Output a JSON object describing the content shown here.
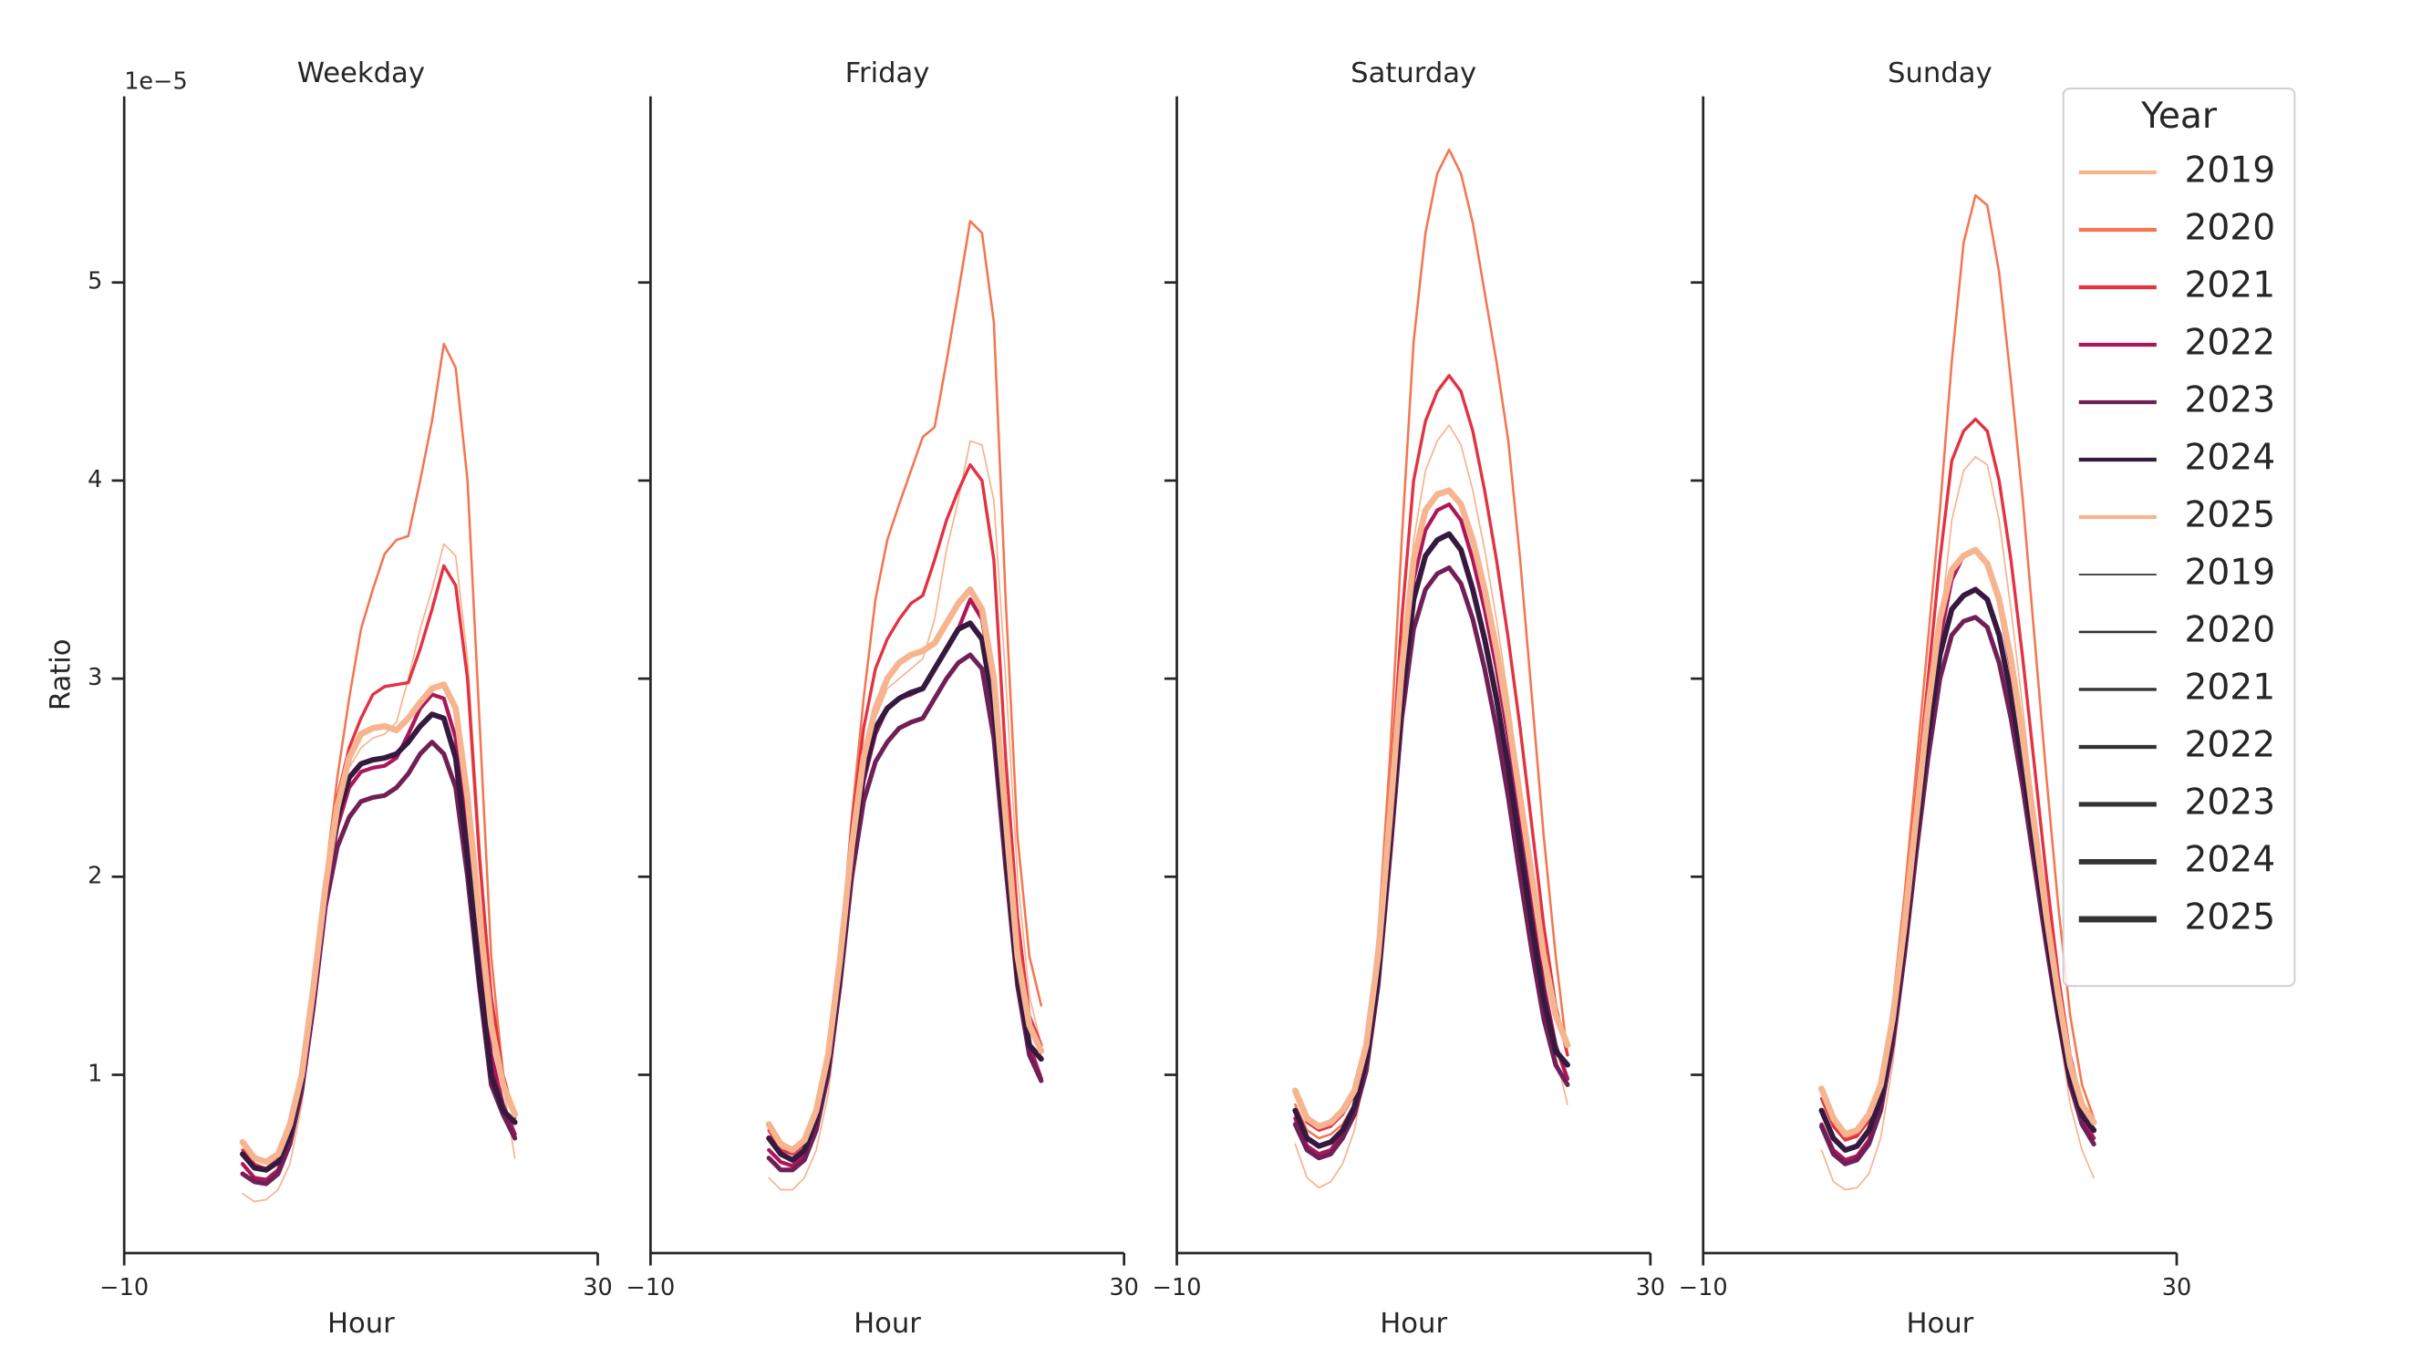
{
  "chart_data": [
    {
      "type": "line",
      "title": "Weekday",
      "xlabel": "Hour",
      "ylabel": "Ratio",
      "y_offset_label": "1e−5",
      "ytick_labels": true,
      "x": [
        0,
        1,
        2,
        3,
        4,
        5,
        6,
        7,
        8,
        9,
        10,
        11,
        12,
        13,
        14,
        15,
        16,
        17,
        18,
        19,
        20,
        21,
        22,
        23
      ],
      "xlim": [
        -10,
        30
      ],
      "xticks": [
        {
          "value": -10,
          "label": "−10"
        },
        30
      ],
      "ylim": [
        0.1,
        5.94
      ],
      "yticks": [
        1,
        2,
        3,
        4,
        5
      ],
      "series": [
        {
          "name": "2019",
          "color": "#f6b48f",
          "linewidth": 1,
          "values": [
            0.4,
            0.36,
            0.37,
            0.42,
            0.55,
            0.85,
            1.4,
            1.98,
            2.35,
            2.55,
            2.65,
            2.7,
            2.72,
            2.78,
            3.0,
            3.25,
            3.45,
            3.68,
            3.62,
            3.1,
            2.2,
            1.4,
            0.95,
            0.58
          ]
        },
        {
          "name": "2020",
          "color": "#f37651",
          "linewidth": 1.5,
          "values": [
            0.62,
            0.55,
            0.53,
            0.58,
            0.72,
            0.95,
            1.45,
            2.0,
            2.5,
            2.9,
            3.25,
            3.45,
            3.63,
            3.7,
            3.72,
            4.0,
            4.3,
            4.69,
            4.57,
            4.0,
            2.8,
            1.6,
            1.0,
            0.8
          ]
        },
        {
          "name": "2021",
          "color": "#e13342",
          "linewidth": 2,
          "values": [
            0.62,
            0.55,
            0.52,
            0.57,
            0.72,
            0.98,
            1.45,
            1.98,
            2.4,
            2.65,
            2.8,
            2.92,
            2.96,
            2.97,
            2.98,
            3.15,
            3.35,
            3.57,
            3.47,
            3.0,
            2.1,
            1.4,
            1.0,
            0.78
          ]
        },
        {
          "name": "2022",
          "color": "#ad1759",
          "linewidth": 2.5,
          "values": [
            0.55,
            0.48,
            0.47,
            0.52,
            0.68,
            0.95,
            1.4,
            1.9,
            2.25,
            2.45,
            2.53,
            2.55,
            2.56,
            2.6,
            2.72,
            2.85,
            2.92,
            2.9,
            2.7,
            2.2,
            1.6,
            1.1,
            0.85,
            0.7
          ]
        },
        {
          "name": "2023",
          "color": "#701f57",
          "linewidth": 3,
          "values": [
            0.5,
            0.46,
            0.45,
            0.5,
            0.65,
            0.92,
            1.35,
            1.85,
            2.15,
            2.3,
            2.38,
            2.4,
            2.41,
            2.45,
            2.52,
            2.62,
            2.68,
            2.62,
            2.45,
            2.0,
            1.45,
            0.95,
            0.8,
            0.68
          ]
        },
        {
          "name": "2024",
          "color": "#35193e",
          "linewidth": 3.5,
          "values": [
            0.6,
            0.53,
            0.52,
            0.56,
            0.7,
            0.98,
            1.45,
            1.95,
            2.3,
            2.5,
            2.57,
            2.59,
            2.6,
            2.62,
            2.68,
            2.76,
            2.82,
            2.8,
            2.6,
            2.1,
            1.5,
            1.0,
            0.82,
            0.76
          ]
        },
        {
          "name": "2025",
          "color": "#f6b48f",
          "linewidth": 4,
          "values": [
            0.66,
            0.58,
            0.56,
            0.6,
            0.75,
            1.0,
            1.45,
            1.95,
            2.35,
            2.6,
            2.72,
            2.75,
            2.76,
            2.74,
            2.8,
            2.88,
            2.95,
            2.97,
            2.85,
            2.4,
            1.8,
            1.25,
            0.95,
            0.8
          ]
        }
      ]
    },
    {
      "type": "line",
      "title": "Friday",
      "xlabel": "Hour",
      "ytick_labels": false,
      "x": [
        0,
        1,
        2,
        3,
        4,
        5,
        6,
        7,
        8,
        9,
        10,
        11,
        12,
        13,
        14,
        15,
        16,
        17,
        18,
        19,
        20,
        21,
        22,
        23
      ],
      "xlim": [
        -10,
        30
      ],
      "xticks": [
        {
          "value": -10,
          "label": "−10"
        },
        30
      ],
      "ylim": [
        0.1,
        5.94
      ],
      "yticks": [
        1,
        2,
        3,
        4,
        5
      ],
      "series": [
        {
          "name": "2019",
          "color": "#f6b48f",
          "linewidth": 1,
          "values": [
            0.48,
            0.42,
            0.42,
            0.48,
            0.62,
            0.9,
            1.4,
            2.0,
            2.5,
            2.8,
            2.95,
            3.0,
            3.05,
            3.1,
            3.3,
            3.65,
            3.9,
            4.2,
            4.18,
            3.9,
            3.0,
            2.0,
            1.4,
            1.15
          ]
        },
        {
          "name": "2020",
          "color": "#f37651",
          "linewidth": 1.5,
          "values": [
            0.72,
            0.62,
            0.6,
            0.65,
            0.8,
            1.1,
            1.6,
            2.3,
            2.9,
            3.4,
            3.7,
            3.88,
            4.05,
            4.22,
            4.27,
            4.6,
            4.95,
            5.31,
            5.25,
            4.8,
            3.4,
            2.2,
            1.6,
            1.35
          ]
        },
        {
          "name": "2021",
          "color": "#e13342",
          "linewidth": 2,
          "values": [
            0.72,
            0.62,
            0.6,
            0.65,
            0.8,
            1.1,
            1.6,
            2.25,
            2.75,
            3.05,
            3.2,
            3.3,
            3.38,
            3.42,
            3.6,
            3.8,
            3.95,
            4.08,
            4.0,
            3.6,
            2.6,
            1.8,
            1.3,
            1.15
          ]
        },
        {
          "name": "2022",
          "color": "#ad1759",
          "linewidth": 2.5,
          "values": [
            0.62,
            0.56,
            0.54,
            0.6,
            0.75,
            1.02,
            1.48,
            2.05,
            2.48,
            2.72,
            2.85,
            2.9,
            2.92,
            2.95,
            3.05,
            3.15,
            3.25,
            3.4,
            3.3,
            2.95,
            2.25,
            1.55,
            1.15,
            0.98
          ]
        },
        {
          "name": "2023",
          "color": "#701f57",
          "linewidth": 3,
          "values": [
            0.58,
            0.52,
            0.52,
            0.57,
            0.72,
            1.0,
            1.45,
            2.0,
            2.38,
            2.58,
            2.68,
            2.75,
            2.78,
            2.8,
            2.9,
            3.0,
            3.08,
            3.12,
            3.05,
            2.7,
            2.05,
            1.45,
            1.1,
            0.97
          ]
        },
        {
          "name": "2024",
          "color": "#35193e",
          "linewidth": 3.5,
          "values": [
            0.68,
            0.6,
            0.57,
            0.62,
            0.78,
            1.06,
            1.52,
            2.1,
            2.52,
            2.75,
            2.85,
            2.9,
            2.93,
            2.95,
            3.05,
            3.15,
            3.25,
            3.28,
            3.2,
            2.85,
            2.15,
            1.5,
            1.15,
            1.08
          ]
        },
        {
          "name": "2025",
          "color": "#f6b48f",
          "linewidth": 4,
          "values": [
            0.75,
            0.65,
            0.62,
            0.67,
            0.82,
            1.1,
            1.58,
            2.15,
            2.6,
            2.85,
            3.0,
            3.08,
            3.12,
            3.14,
            3.18,
            3.28,
            3.38,
            3.45,
            3.35,
            3.0,
            2.3,
            1.6,
            1.25,
            1.12
          ]
        }
      ]
    },
    {
      "type": "line",
      "title": "Saturday",
      "xlabel": "Hour",
      "ytick_labels": false,
      "x": [
        0,
        1,
        2,
        3,
        4,
        5,
        6,
        7,
        8,
        9,
        10,
        11,
        12,
        13,
        14,
        15,
        16,
        17,
        18,
        19,
        20,
        21,
        22,
        23
      ],
      "xlim": [
        -10,
        30
      ],
      "xticks": [
        {
          "value": -10,
          "label": "−10"
        },
        30
      ],
      "ylim": [
        0.1,
        5.94
      ],
      "yticks": [
        1,
        2,
        3,
        4,
        5
      ],
      "series": [
        {
          "name": "2019",
          "color": "#f6b48f",
          "linewidth": 1,
          "values": [
            0.65,
            0.48,
            0.43,
            0.46,
            0.55,
            0.72,
            1.05,
            1.55,
            2.25,
            3.05,
            3.7,
            4.05,
            4.2,
            4.28,
            4.18,
            3.95,
            3.65,
            3.3,
            2.9,
            2.45,
            1.95,
            1.5,
            1.1,
            0.85
          ]
        },
        {
          "name": "2020",
          "color": "#f37651",
          "linewidth": 1.5,
          "values": [
            0.85,
            0.72,
            0.68,
            0.7,
            0.75,
            0.85,
            1.15,
            1.7,
            2.6,
            3.7,
            4.7,
            5.25,
            5.55,
            5.67,
            5.55,
            5.3,
            4.95,
            4.6,
            4.2,
            3.6,
            2.9,
            2.2,
            1.6,
            1.1
          ]
        },
        {
          "name": "2021",
          "color": "#e13342",
          "linewidth": 2,
          "values": [
            0.9,
            0.76,
            0.72,
            0.74,
            0.8,
            0.9,
            1.15,
            1.65,
            2.4,
            3.3,
            4.0,
            4.3,
            4.45,
            4.53,
            4.45,
            4.25,
            3.95,
            3.6,
            3.2,
            2.75,
            2.25,
            1.75,
            1.35,
            1.1
          ]
        },
        {
          "name": "2022",
          "color": "#ad1759",
          "linewidth": 2.5,
          "values": [
            0.78,
            0.64,
            0.6,
            0.62,
            0.7,
            0.82,
            1.05,
            1.5,
            2.2,
            2.95,
            3.5,
            3.75,
            3.85,
            3.88,
            3.8,
            3.6,
            3.35,
            3.05,
            2.7,
            2.3,
            1.85,
            1.45,
            1.15,
            0.98
          ]
        },
        {
          "name": "2023",
          "color": "#701f57",
          "linewidth": 3,
          "values": [
            0.75,
            0.62,
            0.58,
            0.6,
            0.68,
            0.8,
            1.02,
            1.45,
            2.1,
            2.8,
            3.25,
            3.45,
            3.53,
            3.56,
            3.48,
            3.3,
            3.05,
            2.75,
            2.4,
            2.0,
            1.62,
            1.28,
            1.05,
            0.95
          ]
        },
        {
          "name": "2024",
          "color": "#35193e",
          "linewidth": 3.5,
          "values": [
            0.82,
            0.68,
            0.64,
            0.66,
            0.72,
            0.84,
            1.08,
            1.5,
            2.2,
            2.9,
            3.4,
            3.62,
            3.7,
            3.73,
            3.65,
            3.45,
            3.2,
            2.9,
            2.55,
            2.15,
            1.75,
            1.38,
            1.12,
            1.05
          ]
        },
        {
          "name": "2025",
          "color": "#f6b48f",
          "linewidth": 4,
          "values": [
            0.92,
            0.78,
            0.74,
            0.76,
            0.82,
            0.92,
            1.15,
            1.6,
            2.3,
            3.05,
            3.6,
            3.85,
            3.93,
            3.95,
            3.88,
            3.7,
            3.45,
            3.15,
            2.8,
            2.4,
            2.0,
            1.6,
            1.3,
            1.15
          ]
        }
      ]
    },
    {
      "type": "line",
      "title": "Sunday",
      "xlabel": "Hour",
      "ytick_labels": false,
      "x": [
        0,
        1,
        2,
        3,
        4,
        5,
        6,
        7,
        8,
        9,
        10,
        11,
        12,
        13,
        14,
        15,
        16,
        17,
        18,
        19,
        20,
        21,
        22,
        23
      ],
      "xlim": [
        -10,
        30
      ],
      "xticks": [
        {
          "value": -10,
          "label": "−10"
        },
        30
      ],
      "ylim": [
        0.1,
        5.94
      ],
      "yticks": [
        1,
        2,
        3,
        4,
        5
      ],
      "legend": {
        "title": "Year",
        "loc": "upper right"
      },
      "size_legend": [
        "2019",
        "2020",
        "2021",
        "2022",
        "2023",
        "2024",
        "2025"
      ],
      "series": [
        {
          "name": "2019",
          "color": "#f6b48f",
          "linewidth": 1,
          "values": [
            0.62,
            0.46,
            0.42,
            0.43,
            0.5,
            0.68,
            1.05,
            1.55,
            2.1,
            2.65,
            3.25,
            3.8,
            4.05,
            4.12,
            4.08,
            3.8,
            3.35,
            2.85,
            2.3,
            1.75,
            1.25,
            0.85,
            0.62,
            0.48
          ]
        },
        {
          "name": "2020",
          "color": "#f37651",
          "linewidth": 1.5,
          "values": [
            0.92,
            0.75,
            0.68,
            0.7,
            0.78,
            0.95,
            1.35,
            1.9,
            2.55,
            3.2,
            3.85,
            4.6,
            5.2,
            5.44,
            5.39,
            5.05,
            4.5,
            3.9,
            3.2,
            2.5,
            1.85,
            1.3,
            0.95,
            0.78
          ]
        },
        {
          "name": "2021",
          "color": "#e13342",
          "linewidth": 2,
          "values": [
            0.88,
            0.74,
            0.67,
            0.69,
            0.77,
            0.94,
            1.3,
            1.8,
            2.4,
            3.0,
            3.6,
            4.1,
            4.25,
            4.31,
            4.25,
            4.0,
            3.6,
            3.1,
            2.55,
            2.0,
            1.5,
            1.1,
            0.85,
            0.72
          ]
        },
        {
          "name": "2022",
          "color": "#ad1759",
          "linewidth": 2.5,
          "values": [
            0.75,
            0.62,
            0.57,
            0.59,
            0.67,
            0.85,
            1.18,
            1.65,
            2.2,
            2.75,
            3.2,
            3.5,
            3.62,
            3.65,
            3.58,
            3.38,
            3.05,
            2.65,
            2.2,
            1.75,
            1.35,
            1.0,
            0.78,
            0.68
          ]
        },
        {
          "name": "2023",
          "color": "#701f57",
          "linewidth": 3,
          "values": [
            0.74,
            0.6,
            0.55,
            0.57,
            0.65,
            0.82,
            1.15,
            1.6,
            2.12,
            2.6,
            3.0,
            3.22,
            3.29,
            3.31,
            3.26,
            3.08,
            2.8,
            2.45,
            2.05,
            1.65,
            1.28,
            0.95,
            0.75,
            0.65
          ]
        },
        {
          "name": "2024",
          "color": "#35193e",
          "linewidth": 3.5,
          "values": [
            0.82,
            0.68,
            0.62,
            0.64,
            0.72,
            0.88,
            1.22,
            1.68,
            2.22,
            2.72,
            3.12,
            3.35,
            3.42,
            3.45,
            3.4,
            3.22,
            2.92,
            2.55,
            2.15,
            1.72,
            1.32,
            0.98,
            0.8,
            0.72
          ]
        },
        {
          "name": "2025",
          "color": "#f6b48f",
          "linewidth": 4,
          "values": [
            0.93,
            0.78,
            0.7,
            0.72,
            0.8,
            0.95,
            1.28,
            1.75,
            2.3,
            2.85,
            3.3,
            3.55,
            3.62,
            3.65,
            3.58,
            3.4,
            3.1,
            2.7,
            2.25,
            1.8,
            1.4,
            1.05,
            0.85,
            0.76
          ]
        }
      ]
    }
  ]
}
